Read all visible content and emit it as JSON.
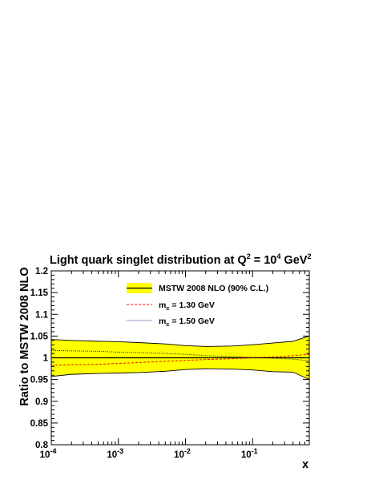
{
  "chart_data": {
    "type": "line",
    "title": {
      "prefix": "Light quark singlet distribution at Q",
      "q_exponent": "2",
      "middle": " = 10",
      "value_exponent": "4",
      "unit": " GeV",
      "unit_exponent": "2"
    },
    "xlabel": "x",
    "ylabel": "Ratio to MSTW 2008 NLO",
    "xscale": "log",
    "xlim": [
      0.0001,
      0.7
    ],
    "ylim": [
      0.8,
      1.2
    ],
    "x_ticks": [
      {
        "value": 0.0001,
        "base": "10",
        "exponent": "-4"
      },
      {
        "value": 0.001,
        "base": "10",
        "exponent": "-3"
      },
      {
        "value": 0.01,
        "base": "10",
        "exponent": "-2"
      },
      {
        "value": 0.1,
        "base": "10",
        "exponent": "-1"
      }
    ],
    "y_ticks": [
      {
        "value": 0.8,
        "label": "0.8"
      },
      {
        "value": 0.85,
        "label": "0.85"
      },
      {
        "value": 0.9,
        "label": "0.9"
      },
      {
        "value": 0.95,
        "label": "0.95"
      },
      {
        "value": 1.0,
        "label": "1"
      },
      {
        "value": 1.05,
        "label": "1.05"
      },
      {
        "value": 1.1,
        "label": "1.1"
      },
      {
        "value": 1.15,
        "label": "1.15"
      },
      {
        "value": 1.2,
        "label": "1.2"
      }
    ],
    "grid": false,
    "legend_position": "top-center",
    "legend": [
      {
        "key": "band",
        "text": "MSTW 2008 NLO (90% C.L.)"
      },
      {
        "key": "mc130",
        "main": "m",
        "sub": "c",
        "rest": " = 1.30 GeV"
      },
      {
        "key": "mc150",
        "main": "m",
        "sub": "c",
        "rest": " = 1.50 GeV"
      }
    ],
    "colors": {
      "band_fill": "#ffff00",
      "band_edge": "#000000",
      "central": "#000000",
      "mc130": "#ff0000",
      "mc150": "#000099"
    },
    "x": [
      0.0001,
      0.0002,
      0.0005,
      0.001,
      0.002,
      0.005,
      0.01,
      0.02,
      0.05,
      0.1,
      0.2,
      0.4,
      0.7
    ],
    "series": [
      {
        "key": "band",
        "upper": [
          1.042,
          1.04,
          1.038,
          1.037,
          1.035,
          1.032,
          1.028,
          1.026,
          1.027,
          1.03,
          1.034,
          1.038,
          1.05
        ],
        "lower": [
          0.957,
          0.962,
          0.964,
          0.965,
          0.966,
          0.969,
          0.973,
          0.975,
          0.974,
          0.972,
          0.968,
          0.967,
          0.95
        ]
      },
      {
        "key": "central",
        "values": [
          1,
          1,
          1,
          1,
          1,
          1,
          1,
          1,
          1,
          1,
          1,
          1,
          1
        ]
      },
      {
        "key": "mc130",
        "values": [
          0.983,
          0.984,
          0.985,
          0.987,
          0.989,
          0.992,
          0.994,
          0.996,
          0.998,
          1.0,
          1.002,
          1.005,
          1.008
        ]
      },
      {
        "key": "mc150",
        "values": [
          1.017,
          1.016,
          1.015,
          1.013,
          1.012,
          1.01,
          1.008,
          1.005,
          1.003,
          1.001,
          0.999,
          0.997,
          0.993
        ]
      }
    ]
  }
}
